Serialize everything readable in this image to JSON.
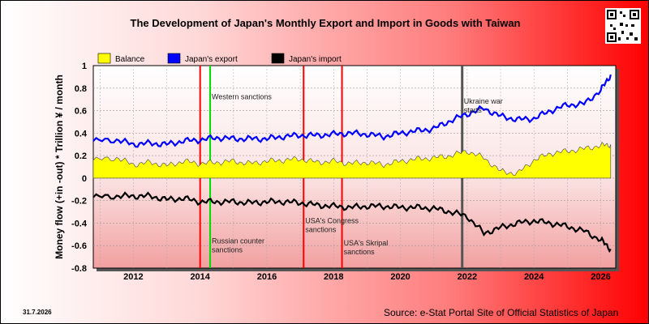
{
  "page": {
    "date_stamp": "31.7.2026",
    "source": "Source: e-Stat Portal Site of Official Statistics of Japan"
  },
  "chart_data": {
    "type": "line",
    "title": "The Development of Japan's Monthly Export and Import in Goods with Taiwan",
    "xlabel": "",
    "ylabel": "Money flow (+in -out) * Trillion ¥ / month",
    "xlim": [
      2010.8,
      2026.45
    ],
    "ylim": [
      -0.8,
      1.0
    ],
    "yticks": [
      1,
      0.8,
      0.6,
      0.4,
      0.2,
      0,
      -0.2,
      -0.4,
      -0.6,
      -0.8
    ],
    "xticks": [
      "2012",
      "2014",
      "2016",
      "2018",
      "2020",
      "2022",
      "2024",
      "2026"
    ],
    "grid": true,
    "legend_position": "top-left",
    "series": [
      {
        "name": "Balance",
        "color": "#ffff00",
        "kind": "area",
        "x": [
          2010.8,
          2011.5,
          2012.0,
          2012.5,
          2013.0,
          2013.5,
          2014.0,
          2014.5,
          2015.0,
          2015.5,
          2016.0,
          2016.5,
          2017.0,
          2017.5,
          2018.0,
          2018.5,
          2019.0,
          2019.5,
          2020.0,
          2020.5,
          2021.0,
          2021.5,
          2022.0,
          2022.5,
          2023.0,
          2023.5,
          2024.0,
          2024.5,
          2025.0,
          2025.5,
          2026.0,
          2026.3
        ],
        "values": [
          0.16,
          0.18,
          0.12,
          0.14,
          0.11,
          0.15,
          0.13,
          0.14,
          0.15,
          0.13,
          0.15,
          0.16,
          0.17,
          0.14,
          0.15,
          0.13,
          0.14,
          0.12,
          0.15,
          0.17,
          0.18,
          0.2,
          0.24,
          0.18,
          0.06,
          0.04,
          0.16,
          0.22,
          0.24,
          0.26,
          0.29,
          0.3
        ]
      },
      {
        "name": "Japan's export",
        "color": "#0000ff",
        "kind": "line",
        "x": [
          2010.8,
          2011.5,
          2012.0,
          2012.5,
          2013.0,
          2013.5,
          2014.0,
          2014.5,
          2015.0,
          2015.5,
          2016.0,
          2016.5,
          2017.0,
          2017.5,
          2018.0,
          2018.5,
          2019.0,
          2019.5,
          2020.0,
          2020.5,
          2021.0,
          2021.5,
          2022.0,
          2022.5,
          2023.0,
          2023.5,
          2024.0,
          2024.5,
          2025.0,
          2025.5,
          2026.0,
          2026.3
        ],
        "values": [
          0.33,
          0.34,
          0.3,
          0.31,
          0.3,
          0.33,
          0.34,
          0.36,
          0.35,
          0.35,
          0.35,
          0.37,
          0.38,
          0.38,
          0.39,
          0.4,
          0.39,
          0.37,
          0.4,
          0.42,
          0.44,
          0.51,
          0.57,
          0.62,
          0.55,
          0.52,
          0.53,
          0.6,
          0.65,
          0.66,
          0.78,
          0.92
        ]
      },
      {
        "name": "Japan's import",
        "color": "#000000",
        "kind": "line",
        "x": [
          2010.8,
          2011.5,
          2012.0,
          2012.5,
          2013.0,
          2013.5,
          2014.0,
          2014.5,
          2015.0,
          2015.5,
          2016.0,
          2016.5,
          2017.0,
          2017.5,
          2018.0,
          2018.5,
          2019.0,
          2019.5,
          2020.0,
          2020.5,
          2021.0,
          2021.5,
          2022.0,
          2022.5,
          2023.0,
          2023.5,
          2024.0,
          2024.5,
          2025.0,
          2025.5,
          2026.0,
          2026.3
        ],
        "values": [
          -0.17,
          -0.16,
          -0.16,
          -0.16,
          -0.19,
          -0.18,
          -0.21,
          -0.21,
          -0.21,
          -0.22,
          -0.21,
          -0.21,
          -0.22,
          -0.24,
          -0.25,
          -0.26,
          -0.25,
          -0.25,
          -0.26,
          -0.26,
          -0.27,
          -0.3,
          -0.34,
          -0.49,
          -0.44,
          -0.4,
          -0.38,
          -0.4,
          -0.43,
          -0.47,
          -0.55,
          -0.63
        ]
      }
    ],
    "annotations": [
      {
        "x": 2014.0,
        "color": "#ff0000",
        "text": ""
      },
      {
        "x": 2014.3,
        "color": "#00dd00",
        "text": "Western sanctions",
        "text_y": 0.7
      },
      {
        "x": 2014.3,
        "color": "#00dd00",
        "text": "Russian counter sanctions",
        "text_y": -0.58
      },
      {
        "x": 2017.1,
        "color": "#ff0000",
        "text": "USA's Congress sanctions",
        "text_y": -0.4
      },
      {
        "x": 2018.25,
        "color": "#ff0000",
        "text": "USA's Skripal sanctions",
        "text_y": -0.6
      },
      {
        "x": 2021.85,
        "color": "#555555",
        "text": "Ukraine war starts",
        "text_y": 0.66
      }
    ]
  }
}
